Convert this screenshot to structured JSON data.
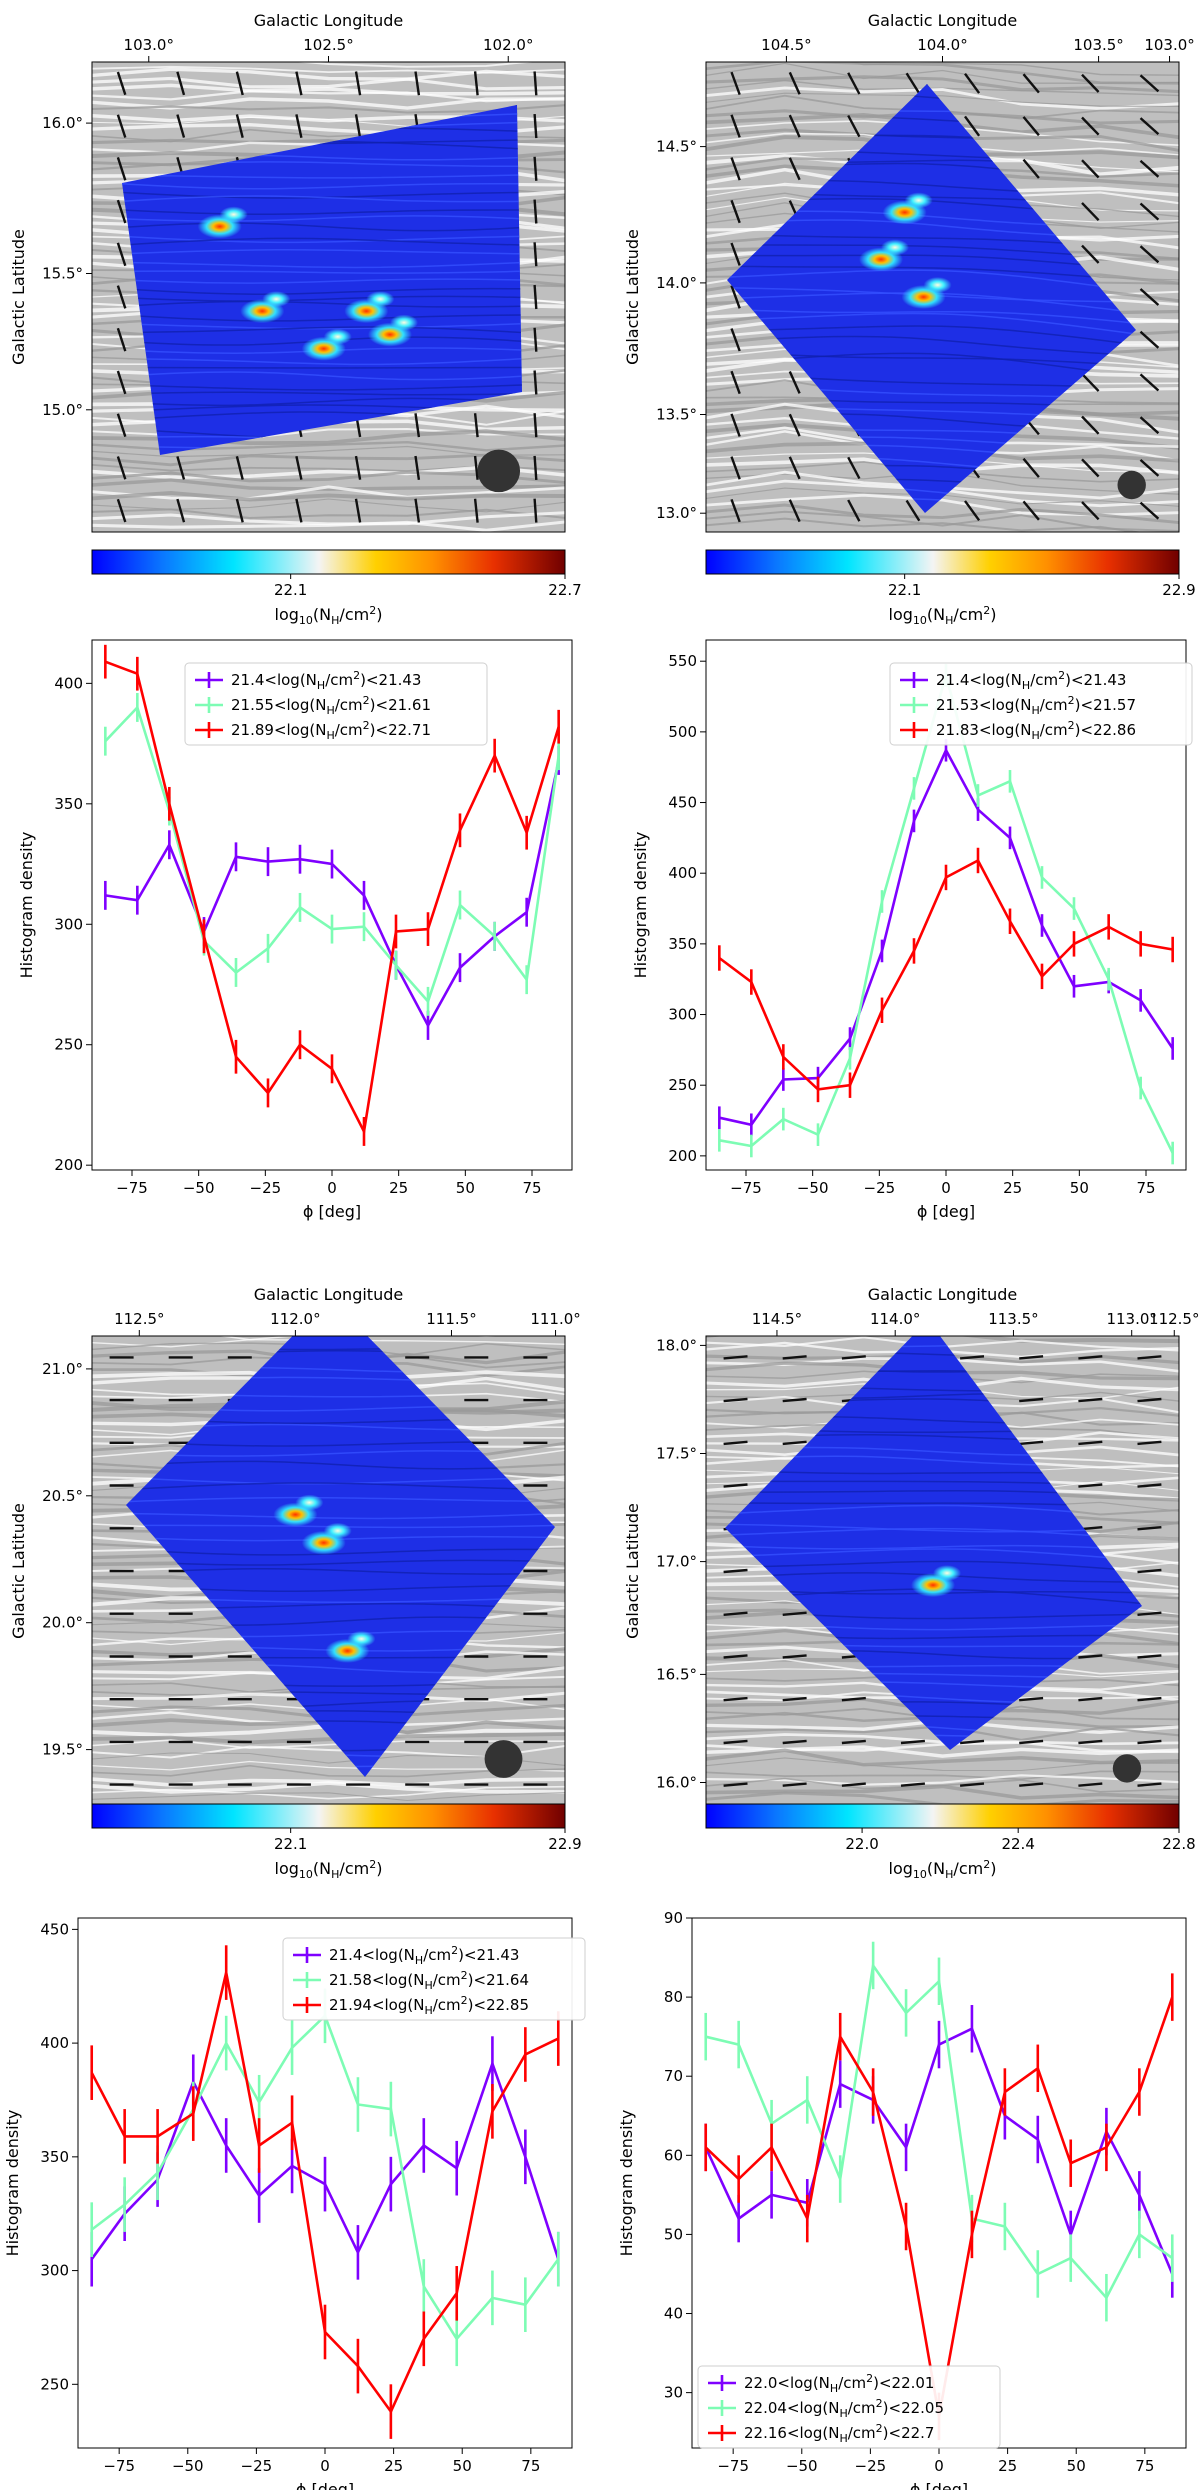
{
  "chart_data": [
    {
      "type": "heatmap",
      "id": "map1",
      "xlabel": "Galactic Longitude",
      "ylabel": "Galactic Latitude",
      "xticks": [
        "103.0°",
        "102.5°",
        "102.0°"
      ],
      "yticks": [
        "15.0°",
        "15.5°",
        "16.0°"
      ],
      "colorbar": {
        "label": "log$_{10}$(N$_H$/cm$^2$)",
        "label_main": "log",
        "label_sub": "10",
        "label_paren": "(N",
        "label_h": "H",
        "label_unit": "/cm",
        "label_exp": "2",
        "label_close": ")",
        "ticks": [
          "22.1",
          "22.7"
        ]
      },
      "beam_present": true
    },
    {
      "type": "heatmap",
      "id": "map2",
      "xlabel": "Galactic Longitude",
      "ylabel": "Galactic Latitude",
      "xticks": [
        "104.5°",
        "104.0°",
        "103.5°",
        "103.0°"
      ],
      "yticks": [
        "13.0°",
        "13.5°",
        "14.0°",
        "14.5°"
      ],
      "colorbar": {
        "label": "log$_{10}$(N$_H$/cm$^2$)",
        "ticks": [
          "22.1",
          "22.9"
        ]
      },
      "beam_present": true
    },
    {
      "type": "line",
      "id": "hist1",
      "xlabel": "ϕ [deg]",
      "ylabel": "Histogram density",
      "xlim": [
        -90,
        90
      ],
      "ylim": [
        198,
        418
      ],
      "xticks": [
        -75,
        -50,
        -25,
        0,
        25,
        50,
        75
      ],
      "yticks": [
        200,
        250,
        300,
        350,
        400
      ],
      "legend_position": "upper-center",
      "x": [
        -85,
        -73,
        -61,
        -48,
        -36,
        -24,
        -12,
        0,
        12,
        24,
        36,
        48,
        61,
        73,
        85
      ],
      "series": [
        {
          "name": "21.4<log(N_H/cm²)<21.43",
          "lo": "21.4",
          "hi": "21.43",
          "color": "#7f00ff",
          "values": [
            312,
            310,
            333,
            297,
            328,
            326,
            327,
            325,
            312,
            283,
            258,
            282,
            295,
            305,
            368
          ],
          "errors": [
            6,
            6,
            6,
            6,
            6,
            6,
            6,
            6,
            6,
            6,
            6,
            6,
            6,
            6,
            6
          ]
        },
        {
          "name": "21.55<log(N_H/cm²)<21.61",
          "lo": "21.55",
          "hi": "21.61",
          "color": "#7dfcb4",
          "values": [
            376,
            390,
            347,
            293,
            280,
            290,
            307,
            298,
            299,
            283,
            268,
            308,
            295,
            277,
            370
          ],
          "errors": [
            6,
            6,
            6,
            6,
            6,
            6,
            6,
            6,
            6,
            6,
            6,
            6,
            6,
            6,
            6
          ]
        },
        {
          "name": "21.89<log(N_H/cm²)<22.71",
          "lo": "21.89",
          "hi": "22.71",
          "color": "#ff0000",
          "values": [
            409,
            404,
            350,
            295,
            245,
            230,
            250,
            240,
            214,
            297,
            298,
            339,
            370,
            338,
            382
          ],
          "errors": [
            7,
            7,
            7,
            7,
            7,
            6,
            6,
            6,
            6,
            7,
            7,
            7,
            7,
            7,
            7
          ]
        }
      ]
    },
    {
      "type": "line",
      "id": "hist2",
      "xlabel": "ϕ [deg]",
      "ylabel": "Histogram density",
      "xlim": [
        -90,
        90
      ],
      "ylim": [
        190,
        565
      ],
      "xticks": [
        -75,
        -50,
        -25,
        0,
        25,
        50,
        75
      ],
      "yticks": [
        200,
        250,
        300,
        350,
        400,
        450,
        500,
        550
      ],
      "legend_position": "upper-right",
      "x": [
        -85,
        -73,
        -61,
        -48,
        -36,
        -24,
        -12,
        0,
        12,
        24,
        36,
        48,
        61,
        73,
        85
      ],
      "series": [
        {
          "name": "21.4<log(N_H/cm²)<21.43",
          "lo": "21.4",
          "hi": "21.43",
          "color": "#7f00ff",
          "values": [
            227,
            222,
            254,
            255,
            283,
            345,
            437,
            487,
            445,
            425,
            363,
            320,
            323,
            310,
            276
          ],
          "errors": [
            8,
            8,
            8,
            8,
            8,
            8,
            8,
            8,
            8,
            8,
            8,
            8,
            8,
            8,
            8
          ]
        },
        {
          "name": "21.53<log(N_H/cm²)<21.57",
          "lo": "21.53",
          "hi": "21.57",
          "color": "#7dfcb4",
          "values": [
            211,
            207,
            226,
            215,
            269,
            380,
            460,
            540,
            455,
            465,
            397,
            375,
            325,
            248,
            202
          ],
          "errors": [
            8,
            8,
            8,
            8,
            8,
            8,
            8,
            8,
            8,
            8,
            8,
            8,
            8,
            8,
            8
          ]
        },
        {
          "name": "21.83<log(N_H/cm²)<22.86",
          "lo": "21.83",
          "hi": "22.86",
          "color": "#ff0000",
          "values": [
            340,
            323,
            270,
            247,
            250,
            303,
            345,
            397,
            409,
            366,
            327,
            350,
            362,
            350,
            346
          ],
          "errors": [
            9,
            9,
            9,
            9,
            9,
            9,
            9,
            9,
            9,
            9,
            9,
            9,
            9,
            9,
            9
          ]
        }
      ]
    },
    {
      "type": "heatmap",
      "id": "map3",
      "xlabel": "Galactic Longitude",
      "ylabel": "Galactic Latitude",
      "xticks": [
        "112.5°",
        "112.0°",
        "111.5°",
        "111.0°"
      ],
      "yticks": [
        "19.5°",
        "20.0°",
        "20.5°",
        "21.0°"
      ],
      "colorbar": {
        "label": "log$_{10}$(N$_H$/cm$^2$)",
        "ticks": [
          "22.1",
          "22.9"
        ]
      },
      "beam_present": true
    },
    {
      "type": "heatmap",
      "id": "map4",
      "xlabel": "Galactic Longitude",
      "ylabel": "Galactic Latitude",
      "xticks": [
        "114.5°",
        "114.0°",
        "113.5°",
        "113.0°",
        "112.5°"
      ],
      "yticks": [
        "16.0°",
        "16.5°",
        "17.0°",
        "17.5°",
        "18.0°"
      ],
      "colorbar": {
        "label": "log$_{10}$(N$_H$/cm$^2$)",
        "ticks": [
          "22.0",
          "22.4",
          "22.8"
        ]
      },
      "beam_present": true
    },
    {
      "type": "line",
      "id": "hist3",
      "xlabel": "ϕ [deg]",
      "ylabel": "Histogram density",
      "xlim": [
        -90,
        90
      ],
      "ylim": [
        222,
        455
      ],
      "xticks": [
        -75,
        -50,
        -25,
        0,
        25,
        50,
        75
      ],
      "yticks": [
        250,
        300,
        350,
        400,
        450
      ],
      "legend_position": "upper-right",
      "x": [
        -85,
        -73,
        -61,
        -48,
        -36,
        -24,
        -12,
        0,
        12,
        24,
        36,
        48,
        61,
        73,
        85
      ],
      "series": [
        {
          "name": "21.4<log(N_H/cm²)<21.43",
          "lo": "21.4",
          "hi": "21.43",
          "color": "#7f00ff",
          "values": [
            305,
            325,
            340,
            383,
            355,
            333,
            346,
            338,
            308,
            338,
            355,
            345,
            391,
            350,
            305
          ],
          "errors": [
            12,
            12,
            12,
            12,
            12,
            12,
            12,
            12,
            12,
            12,
            12,
            12,
            12,
            12,
            12
          ]
        },
        {
          "name": "21.58<log(N_H/cm²)<21.64",
          "lo": "21.58",
          "hi": "21.64",
          "color": "#7dfcb4",
          "values": [
            318,
            329,
            343,
            371,
            400,
            374,
            398,
            412,
            373,
            371,
            293,
            270,
            288,
            285,
            305
          ],
          "errors": [
            12,
            12,
            12,
            12,
            12,
            12,
            12,
            12,
            12,
            12,
            12,
            12,
            12,
            12,
            12
          ]
        },
        {
          "name": "21.94<log(N_H/cm²)<22.85",
          "lo": "21.94",
          "hi": "22.85",
          "color": "#ff0000",
          "values": [
            387,
            359,
            359,
            369,
            431,
            355,
            365,
            273,
            258,
            238,
            270,
            290,
            370,
            395,
            402
          ],
          "errors": [
            12,
            12,
            12,
            12,
            12,
            12,
            12,
            12,
            12,
            12,
            12,
            12,
            12,
            12,
            12
          ]
        }
      ]
    },
    {
      "type": "line",
      "id": "hist4",
      "xlabel": "ϕ [deg]",
      "ylabel": "Histogram density",
      "xlim": [
        -90,
        90
      ],
      "ylim": [
        23,
        90
      ],
      "xticks": [
        -75,
        -50,
        -25,
        0,
        25,
        50,
        75
      ],
      "yticks": [
        30,
        40,
        50,
        60,
        70,
        80,
        90
      ],
      "legend_position": "lower-left",
      "x": [
        -85,
        -73,
        -61,
        -48,
        -36,
        -24,
        -12,
        0,
        12,
        24,
        36,
        48,
        61,
        73,
        85
      ],
      "series": [
        {
          "name": "22.0<log(N_H/cm²)<22.01",
          "lo": "22.0",
          "hi": "22.01",
          "color": "#7f00ff",
          "values": [
            61,
            52,
            55,
            54,
            69,
            67,
            61,
            74,
            76,
            65,
            62,
            50,
            63,
            55,
            45
          ],
          "errors": [
            3,
            3,
            3,
            3,
            3,
            3,
            3,
            3,
            3,
            3,
            3,
            3,
            3,
            3,
            3
          ]
        },
        {
          "name": "22.04<log(N_H/cm²)<22.05",
          "lo": "22.04",
          "hi": "22.05",
          "color": "#7dfcb4",
          "values": [
            75,
            74,
            64,
            67,
            57,
            84,
            78,
            82,
            52,
            51,
            45,
            47,
            42,
            50,
            47
          ],
          "errors": [
            3,
            3,
            3,
            3,
            3,
            3,
            3,
            3,
            3,
            3,
            3,
            3,
            3,
            3,
            3
          ]
        },
        {
          "name": "22.16<log(N_H/cm²)<22.7",
          "lo": "22.16",
          "hi": "22.7",
          "color": "#ff0000",
          "values": [
            61,
            57,
            61,
            52,
            75,
            68,
            51,
            27,
            50,
            68,
            71,
            59,
            61,
            68,
            80
          ],
          "errors": [
            3,
            3,
            3,
            3,
            3,
            3,
            3,
            3,
            3,
            3,
            3,
            3,
            3,
            3,
            3
          ]
        }
      ]
    }
  ]
}
